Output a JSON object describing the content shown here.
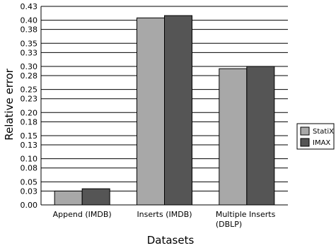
{
  "chart_data": {
    "type": "bar",
    "title": "",
    "xlabel": "Datasets",
    "ylabel": "Relative error",
    "ylim": [
      0,
      0.43
    ],
    "y_ticks": [
      "0.00",
      "0.03",
      "0.05",
      "0.08",
      "0.10",
      "0.13",
      "0.15",
      "0.18",
      "0.20",
      "0.23",
      "0.25",
      "0.28",
      "0.30",
      "0.33",
      "0.35",
      "0.38",
      "0.40",
      "0.43"
    ],
    "categories": [
      [
        "Append (IMDB)"
      ],
      [
        "Inserts (IMDB)"
      ],
      [
        "Multiple Inserts",
        "(DBLP)"
      ]
    ],
    "series": [
      {
        "name": "StatiX",
        "color": "#a8a8a8",
        "values": [
          0.03,
          0.405,
          0.295
        ]
      },
      {
        "name": "IMAX",
        "color": "#555555",
        "values": [
          0.035,
          0.41,
          0.3
        ]
      }
    ],
    "grid": true,
    "legend": "right"
  }
}
